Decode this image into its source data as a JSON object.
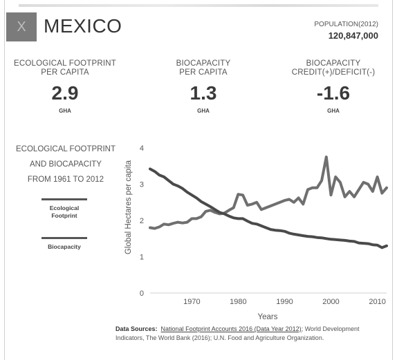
{
  "header": {
    "close_label": "X",
    "country": "MEXICO",
    "population_label": "POPULATION(2012)",
    "population_value": "120,847,000"
  },
  "metrics": [
    {
      "label_line1": "ECOLOGICAL FOOTPRINT",
      "label_line2": "PER CAPITA",
      "value": "2.9",
      "unit": "GHA"
    },
    {
      "label_line1": "BIOCAPACITY",
      "label_line2": "PER CAPITA",
      "value": "1.3",
      "unit": "GHA"
    },
    {
      "label_line1": "BIOCAPACITY",
      "label_line2": "CREDIT(+)/DEFICIT(-)",
      "value": "-1.6",
      "unit": "GHA"
    }
  ],
  "side": {
    "title_line1": "ECOLOGICAL FOOTPRINT",
    "title_line2": "AND BIOCAPACITY",
    "title_line3": "FROM 1961 TO 2012",
    "legend_ef_line1": "Ecological",
    "legend_ef_line2": "Footprint",
    "legend_bio": "Biocapacity"
  },
  "chart_data": {
    "type": "line",
    "xlabel": "Years",
    "ylabel": "Global Hectares per capita",
    "xlim": [
      1961,
      2012
    ],
    "ylim": [
      0,
      4
    ],
    "xticks": [
      1970,
      1980,
      1990,
      2000,
      2010
    ],
    "yticks": [
      0,
      1,
      2,
      3,
      4
    ],
    "grid": false,
    "series": [
      {
        "name": "Ecological Footprint",
        "color": "#6f6f6f",
        "x": [
          1961,
          1962,
          1963,
          1964,
          1965,
          1966,
          1967,
          1968,
          1969,
          1970,
          1971,
          1972,
          1973,
          1974,
          1975,
          1976,
          1977,
          1978,
          1979,
          1980,
          1981,
          1982,
          1983,
          1984,
          1985,
          1986,
          1987,
          1988,
          1989,
          1990,
          1991,
          1992,
          1993,
          1994,
          1995,
          1996,
          1997,
          1998,
          1999,
          2000,
          2001,
          2002,
          2003,
          2004,
          2005,
          2006,
          2007,
          2008,
          2009,
          2010,
          2011,
          2012
        ],
        "y": [
          1.8,
          1.78,
          1.82,
          1.9,
          1.88,
          1.92,
          1.95,
          1.93,
          1.95,
          2.05,
          2.05,
          2.1,
          2.25,
          2.28,
          2.22,
          2.18,
          2.2,
          2.28,
          2.35,
          2.72,
          2.7,
          2.42,
          2.45,
          2.5,
          2.3,
          2.35,
          2.4,
          2.45,
          2.5,
          2.55,
          2.58,
          2.5,
          2.62,
          2.45,
          2.85,
          2.9,
          2.9,
          3.1,
          3.75,
          2.7,
          3.2,
          3.05,
          2.65,
          2.8,
          2.65,
          2.85,
          3.05,
          3.0,
          2.8,
          3.2,
          2.75,
          2.9
        ]
      },
      {
        "name": "Biocapacity",
        "color": "#4a4a4a",
        "x": [
          1961,
          1962,
          1963,
          1964,
          1965,
          1966,
          1967,
          1968,
          1969,
          1970,
          1971,
          1972,
          1973,
          1974,
          1975,
          1976,
          1977,
          1978,
          1979,
          1980,
          1981,
          1982,
          1983,
          1984,
          1985,
          1986,
          1987,
          1988,
          1989,
          1990,
          1991,
          1992,
          1993,
          1994,
          1995,
          1996,
          1997,
          1998,
          1999,
          2000,
          2001,
          2002,
          2003,
          2004,
          2005,
          2006,
          2007,
          2008,
          2009,
          2010,
          2011,
          2012
        ],
        "y": [
          3.42,
          3.35,
          3.25,
          3.2,
          3.1,
          3.0,
          2.95,
          2.88,
          2.78,
          2.7,
          2.62,
          2.52,
          2.45,
          2.38,
          2.3,
          2.22,
          2.18,
          2.12,
          2.07,
          2.05,
          2.05,
          1.98,
          1.92,
          1.9,
          1.85,
          1.8,
          1.75,
          1.73,
          1.72,
          1.7,
          1.65,
          1.62,
          1.6,
          1.58,
          1.56,
          1.55,
          1.53,
          1.52,
          1.5,
          1.48,
          1.47,
          1.46,
          1.45,
          1.43,
          1.42,
          1.38,
          1.37,
          1.36,
          1.33,
          1.32,
          1.25,
          1.3
        ]
      }
    ]
  },
  "sources": {
    "label": "Data Sources:",
    "link_text": "National Footprint Accounts 2016 (Data Year 2012)",
    "rest": "; World Development Indicators, The World Bank (2016); U.N. Food and Agriculture Organization."
  }
}
